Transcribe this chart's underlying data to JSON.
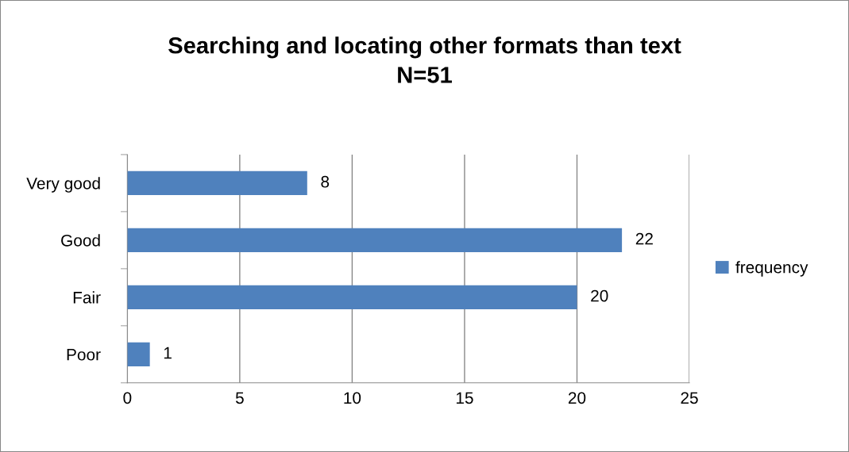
{
  "chart_data": {
    "type": "bar",
    "orientation": "horizontal",
    "title": "Searching and locating other formats than text",
    "subtitle": "N=51",
    "categories": [
      "Very good",
      "Good",
      "Fair",
      "Poor"
    ],
    "series": [
      {
        "name": "frequency",
        "color": "#4f81bd",
        "values": [
          8,
          22,
          20,
          1
        ]
      }
    ],
    "xlim": [
      0,
      25
    ],
    "xticks": [
      0,
      5,
      10,
      15,
      20,
      25
    ],
    "grid": "x",
    "legend": "right",
    "data_labels": true
  }
}
